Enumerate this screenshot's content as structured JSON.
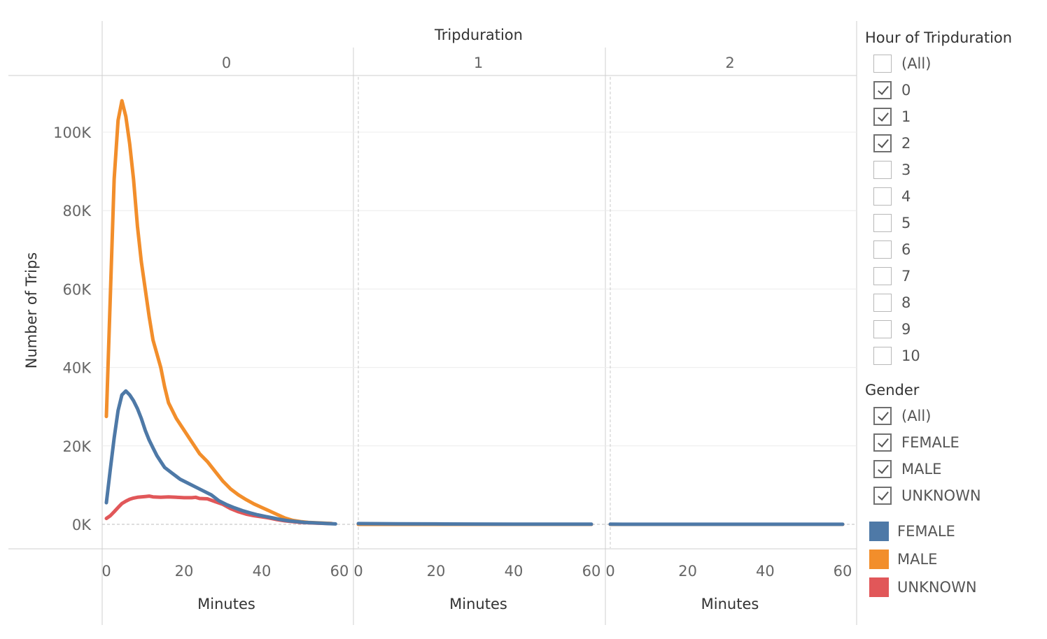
{
  "chart_data": {
    "type": "line",
    "header_title": "Tripduration",
    "columns": [
      "0",
      "1",
      "2"
    ],
    "ylabel": "Number of Trips",
    "xlabel": "Minutes",
    "ylim": [
      0,
      110000
    ],
    "yticks": [
      0,
      20000,
      40000,
      60000,
      80000,
      100000
    ],
    "ytick_labels": [
      "0K",
      "20K",
      "40K",
      "60K",
      "80K",
      "100K"
    ],
    "xlim": [
      0,
      60
    ],
    "xticks": [
      0,
      20,
      40,
      60
    ],
    "grid": true,
    "series": [
      {
        "name": "UNKNOWN",
        "color": "#e15759",
        "panels": [
          [
            [
              0,
              1500
            ],
            [
              1,
              2200
            ],
            [
              2,
              3200
            ],
            [
              3,
              4300
            ],
            [
              4,
              5300
            ],
            [
              5,
              5900
            ],
            [
              6,
              6400
            ],
            [
              7,
              6700
            ],
            [
              8,
              6900
            ],
            [
              10,
              7100
            ],
            [
              11,
              7200
            ],
            [
              12,
              7000
            ],
            [
              14,
              6900
            ],
            [
              16,
              7000
            ],
            [
              18,
              6900
            ],
            [
              20,
              6800
            ],
            [
              22,
              6800
            ],
            [
              23,
              6900
            ],
            [
              24,
              6600
            ],
            [
              26,
              6500
            ],
            [
              28,
              5800
            ],
            [
              30,
              5100
            ],
            [
              32,
              4000
            ],
            [
              34,
              3200
            ],
            [
              36,
              2600
            ],
            [
              38,
              2200
            ],
            [
              40,
              1900
            ],
            [
              42,
              1600
            ],
            [
              44,
              1200
            ],
            [
              46,
              900
            ],
            [
              48,
              700
            ],
            [
              50,
              500
            ],
            [
              52,
              400
            ],
            [
              54,
              300
            ],
            [
              56,
              250
            ],
            [
              58,
              200
            ]
          ],
          [
            [
              0,
              0
            ],
            [
              60,
              0
            ]
          ],
          [
            [
              0,
              0
            ],
            [
              60,
              0
            ]
          ]
        ]
      },
      {
        "name": "MALE",
        "color": "#f28e2b",
        "panels": [
          [
            [
              0,
              27500
            ],
            [
              1,
              58000
            ],
            [
              2,
              88000
            ],
            [
              3,
              103000
            ],
            [
              4,
              108000
            ],
            [
              5,
              104000
            ],
            [
              6,
              97000
            ],
            [
              7,
              88000
            ],
            [
              8,
              76000
            ],
            [
              9,
              67000
            ],
            [
              10,
              60000
            ],
            [
              11,
              53000
            ],
            [
              12,
              47000
            ],
            [
              14,
              40000
            ],
            [
              15,
              35000
            ],
            [
              16,
              31000
            ],
            [
              18,
              27000
            ],
            [
              20,
              24000
            ],
            [
              22,
              21000
            ],
            [
              24,
              18000
            ],
            [
              26,
              16000
            ],
            [
              28,
              13500
            ],
            [
              30,
              11000
            ],
            [
              32,
              9000
            ],
            [
              34,
              7500
            ],
            [
              36,
              6300
            ],
            [
              38,
              5200
            ],
            [
              40,
              4300
            ],
            [
              42,
              3400
            ],
            [
              44,
              2500
            ],
            [
              46,
              1600
            ],
            [
              48,
              1000
            ],
            [
              50,
              700
            ],
            [
              52,
              500
            ],
            [
              54,
              400
            ],
            [
              56,
              300
            ],
            [
              58,
              200
            ]
          ],
          [
            [
              0,
              0
            ],
            [
              60,
              0
            ]
          ],
          [
            [
              0,
              0
            ],
            [
              60,
              0
            ]
          ]
        ]
      },
      {
        "name": "FEMALE",
        "color": "#4e79a7",
        "panels": [
          [
            [
              0,
              5500
            ],
            [
              1,
              14000
            ],
            [
              2,
              22000
            ],
            [
              3,
              29000
            ],
            [
              4,
              33000
            ],
            [
              5,
              34000
            ],
            [
              6,
              33000
            ],
            [
              7,
              31500
            ],
            [
              8,
              29500
            ],
            [
              9,
              27000
            ],
            [
              10,
              24000
            ],
            [
              11,
              21500
            ],
            [
              12,
              19500
            ],
            [
              13,
              17500
            ],
            [
              14,
              16000
            ],
            [
              15,
              14500
            ],
            [
              17,
              13000
            ],
            [
              19,
              11500
            ],
            [
              21,
              10500
            ],
            [
              23,
              9500
            ],
            [
              25,
              8500
            ],
            [
              27,
              7500
            ],
            [
              29,
              6000
            ],
            [
              31,
              5000
            ],
            [
              33,
              4200
            ],
            [
              35,
              3500
            ],
            [
              37,
              2900
            ],
            [
              39,
              2400
            ],
            [
              41,
              2000
            ],
            [
              43,
              1600
            ],
            [
              45,
              1200
            ],
            [
              47,
              900
            ],
            [
              49,
              700
            ],
            [
              51,
              500
            ],
            [
              53,
              400
            ],
            [
              55,
              300
            ],
            [
              57,
              200
            ],
            [
              59,
              100
            ]
          ],
          [
            [
              0,
              200
            ],
            [
              10,
              150
            ],
            [
              20,
              100
            ],
            [
              30,
              80
            ],
            [
              40,
              60
            ],
            [
              50,
              40
            ],
            [
              60,
              30
            ]
          ],
          [
            [
              0,
              30
            ],
            [
              10,
              25
            ],
            [
              20,
              20
            ],
            [
              30,
              20
            ],
            [
              40,
              15
            ],
            [
              50,
              10
            ],
            [
              60,
              10
            ]
          ]
        ]
      }
    ]
  },
  "legend": {
    "hour_filter": {
      "title": "Hour of Tripduration",
      "items": [
        {
          "label": "(All)",
          "checked": false
        },
        {
          "label": "0",
          "checked": true
        },
        {
          "label": "1",
          "checked": true
        },
        {
          "label": "2",
          "checked": true
        },
        {
          "label": "3",
          "checked": false
        },
        {
          "label": "4",
          "checked": false
        },
        {
          "label": "5",
          "checked": false
        },
        {
          "label": "6",
          "checked": false
        },
        {
          "label": "7",
          "checked": false
        },
        {
          "label": "8",
          "checked": false
        },
        {
          "label": "9",
          "checked": false
        },
        {
          "label": "10",
          "checked": false
        }
      ]
    },
    "gender_filter": {
      "title": "Gender",
      "items": [
        {
          "label": "(All)",
          "checked": true
        },
        {
          "label": "FEMALE",
          "checked": true
        },
        {
          "label": "MALE",
          "checked": true
        },
        {
          "label": "UNKNOWN",
          "checked": true
        }
      ]
    },
    "color_legend": [
      {
        "label": "FEMALE",
        "color": "#4e79a7"
      },
      {
        "label": "MALE",
        "color": "#f28e2b"
      },
      {
        "label": "UNKNOWN",
        "color": "#e15759"
      }
    ]
  }
}
